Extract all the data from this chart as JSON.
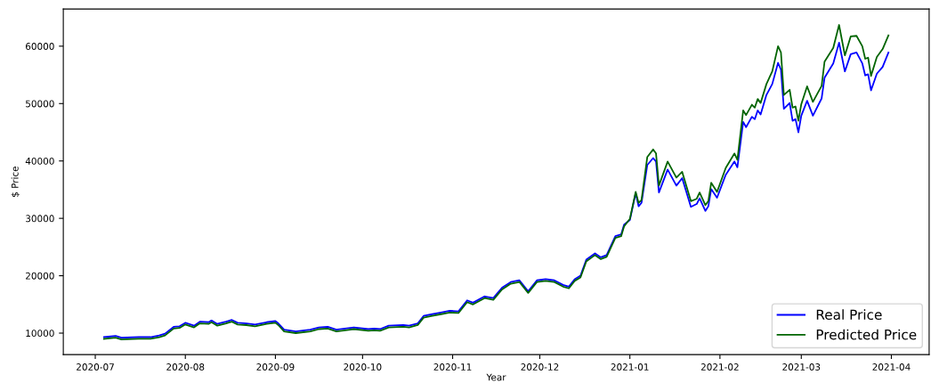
{
  "chart_data": {
    "type": "line",
    "xlabel": "Year",
    "ylabel": "$ Price",
    "x": [
      "2020-07-04",
      "2020-07-08",
      "2020-07-10",
      "2020-07-16",
      "2020-07-20",
      "2020-07-23",
      "2020-07-25",
      "2020-07-28",
      "2020-07-30",
      "2020-08-01",
      "2020-08-04",
      "2020-08-06",
      "2020-08-09",
      "2020-08-10",
      "2020-08-12",
      "2020-08-15",
      "2020-08-17",
      "2020-08-19",
      "2020-08-22",
      "2020-08-25",
      "2020-08-29",
      "2020-09-01",
      "2020-09-02",
      "2020-09-04",
      "2020-09-08",
      "2020-09-13",
      "2020-09-16",
      "2020-09-19",
      "2020-09-22",
      "2020-09-25",
      "2020-09-28",
      "2020-10-03",
      "2020-10-05",
      "2020-10-07",
      "2020-10-10",
      "2020-10-15",
      "2020-10-17",
      "2020-10-20",
      "2020-10-22",
      "2020-10-25",
      "2020-10-28",
      "2020-10-31",
      "2020-11-03",
      "2020-11-06",
      "2020-11-08",
      "2020-11-12",
      "2020-11-15",
      "2020-11-18",
      "2020-11-21",
      "2020-11-24",
      "2020-11-27",
      "2020-11-30",
      "2020-12-03",
      "2020-12-06",
      "2020-12-09",
      "2020-12-11",
      "2020-12-13",
      "2020-12-15",
      "2020-12-17",
      "2020-12-20",
      "2020-12-22",
      "2020-12-24",
      "2020-12-27",
      "2020-12-29",
      "2020-12-30",
      "2021-01-01",
      "2021-01-03",
      "2021-01-04",
      "2021-01-05",
      "2021-01-07",
      "2021-01-09",
      "2021-01-10",
      "2021-01-11",
      "2021-01-14",
      "2021-01-17",
      "2021-01-19",
      "2021-01-22",
      "2021-01-24",
      "2021-01-25",
      "2021-01-27",
      "2021-01-28",
      "2021-01-29",
      "2021-01-31",
      "2021-02-03",
      "2021-02-06",
      "2021-02-07",
      "2021-02-09",
      "2021-02-10",
      "2021-02-12",
      "2021-02-13",
      "2021-02-14",
      "2021-02-15",
      "2021-02-17",
      "2021-02-19",
      "2021-02-21",
      "2021-02-22",
      "2021-02-23",
      "2021-02-25",
      "2021-02-26",
      "2021-02-27",
      "2021-02-28",
      "2021-03-01",
      "2021-03-03",
      "2021-03-05",
      "2021-03-08",
      "2021-03-09",
      "2021-03-12",
      "2021-03-14",
      "2021-03-16",
      "2021-03-18",
      "2021-03-20",
      "2021-03-22",
      "2021-03-23",
      "2021-03-24",
      "2021-03-25",
      "2021-03-27",
      "2021-03-29",
      "2021-03-31"
    ],
    "series": [
      {
        "name": "Real Price",
        "color": "#0000ff",
        "values": [
          9300,
          9500,
          9200,
          9300,
          9300,
          9600,
          9900,
          11100,
          11200,
          11800,
          11300,
          12000,
          11900,
          12200,
          11600,
          12000,
          12300,
          11800,
          11700,
          11500,
          11900,
          12100,
          11700,
          10600,
          10300,
          10600,
          11000,
          11100,
          10600,
          10800,
          11000,
          10700,
          10800,
          10700,
          11300,
          11400,
          11300,
          11700,
          13000,
          13300,
          13600,
          13900,
          13800,
          15700,
          15300,
          16400,
          16100,
          17900,
          18900,
          19200,
          17300,
          19200,
          19400,
          19200,
          18400,
          18100,
          19400,
          20000,
          22800,
          23900,
          23200,
          23600,
          26900,
          27200,
          28900,
          29700,
          34400,
          32100,
          32700,
          39300,
          40500,
          39900,
          34500,
          38500,
          35700,
          37000,
          32000,
          32500,
          33500,
          31300,
          32100,
          35100,
          33600,
          37600,
          39900,
          38900,
          46800,
          45900,
          47700,
          47300,
          48800,
          48100,
          51500,
          53400,
          57100,
          55900,
          49100,
          50100,
          47000,
          47300,
          45000,
          47900,
          50500,
          47900,
          50900,
          54500,
          57000,
          60600,
          55600,
          58600,
          58900,
          57000,
          54900,
          55100,
          52300,
          55200,
          56400,
          58900
        ]
      },
      {
        "name": "Predicted Price",
        "color": "#006400",
        "values": [
          9000,
          9200,
          8900,
          9000,
          9000,
          9300,
          9600,
          10800,
          10900,
          11500,
          11000,
          11700,
          11600,
          11900,
          11300,
          11700,
          12000,
          11500,
          11400,
          11200,
          11600,
          11800,
          11400,
          10300,
          10000,
          10300,
          10700,
          10800,
          10300,
          10500,
          10700,
          10400,
          10500,
          10400,
          11000,
          11100,
          11000,
          11400,
          12700,
          13000,
          13300,
          13600,
          13500,
          15400,
          15000,
          16100,
          15800,
          17600,
          18600,
          18900,
          17000,
          18900,
          19100,
          18900,
          18100,
          17800,
          19100,
          19700,
          22500,
          23600,
          22900,
          23300,
          26600,
          26900,
          28600,
          29900,
          34600,
          32700,
          33200,
          40700,
          42000,
          41300,
          35700,
          39900,
          37100,
          38100,
          33000,
          33400,
          34500,
          32300,
          33000,
          36200,
          34600,
          38800,
          41300,
          40200,
          48800,
          48000,
          49800,
          49300,
          50800,
          50100,
          53400,
          55600,
          60000,
          58900,
          51500,
          52400,
          49300,
          49500,
          47000,
          49900,
          53000,
          50300,
          53100,
          57300,
          59700,
          63700,
          58400,
          61700,
          61800,
          60000,
          57800,
          58000,
          54800,
          58100,
          59500,
          61900
        ]
      }
    ],
    "xlim": [
      "2020-06-20",
      "2021-04-14"
    ],
    "xticks": [
      {
        "value": "2020-07-01",
        "label": "2020-07"
      },
      {
        "value": "2020-08-01",
        "label": "2020-08"
      },
      {
        "value": "2020-09-01",
        "label": "2020-09"
      },
      {
        "value": "2020-10-01",
        "label": "2020-10"
      },
      {
        "value": "2020-11-01",
        "label": "2020-11"
      },
      {
        "value": "2020-12-01",
        "label": "2020-12"
      },
      {
        "value": "2021-01-01",
        "label": "2021-01"
      },
      {
        "value": "2021-02-01",
        "label": "2021-02"
      },
      {
        "value": "2021-03-01",
        "label": "2021-03"
      },
      {
        "value": "2021-04-01",
        "label": "2021-04"
      }
    ],
    "ylim": [
      6250,
      66480
    ],
    "yticks": [
      10000,
      20000,
      30000,
      40000,
      50000,
      60000
    ],
    "grid": false,
    "legend": "bottom right",
    "marker": "none",
    "line_style": "solid"
  }
}
